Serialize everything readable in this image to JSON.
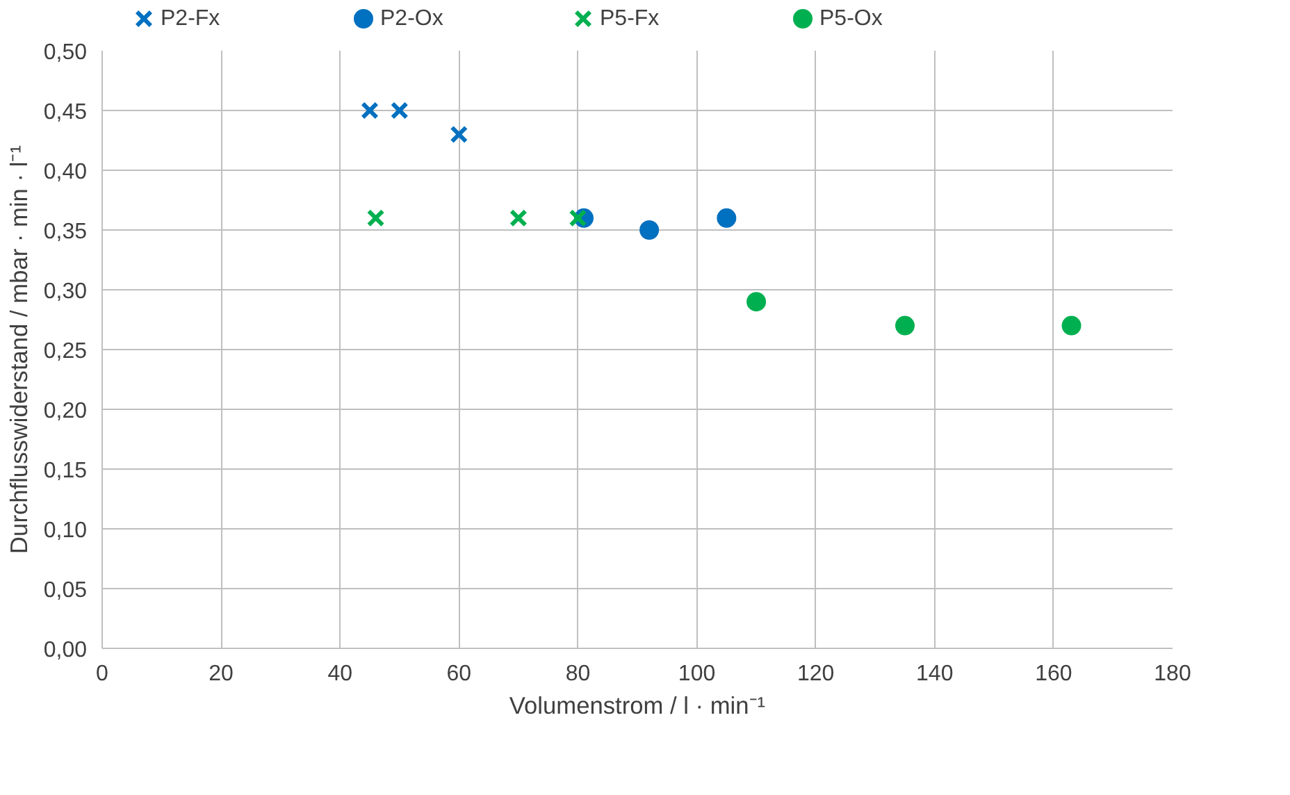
{
  "chart_data": {
    "type": "scatter",
    "xlabel": "Volumenstrom / l · min⁻¹",
    "ylabel": "Durchflusswiderstand / mbar · min · l⁻¹",
    "xlim": [
      0,
      180
    ],
    "xticks": [
      0,
      20,
      40,
      60,
      80,
      100,
      120,
      140,
      160,
      180
    ],
    "ylim": [
      0,
      0.5
    ],
    "yticks": [
      {
        "value": 0,
        "label": "0,00"
      },
      {
        "value": 0.05,
        "label": "0,05"
      },
      {
        "value": 0.1,
        "label": "0,10"
      },
      {
        "value": 0.15,
        "label": "0,15"
      },
      {
        "value": 0.2,
        "label": "0,20"
      },
      {
        "value": 0.25,
        "label": "0,25"
      },
      {
        "value": 0.3,
        "label": "0,30"
      },
      {
        "value": 0.35,
        "label": "0,35"
      },
      {
        "value": 0.4,
        "label": "0,40"
      },
      {
        "value": 0.45,
        "label": "0,45"
      },
      {
        "value": 0.5,
        "label": "0,50"
      }
    ],
    "grid": true,
    "legend": "top",
    "series": [
      {
        "name": "P2-Fx",
        "color": "#0070c0",
        "marker": "cross",
        "x": [
          45,
          50,
          60
        ],
        "values": [
          0.45,
          0.45,
          0.43
        ]
      },
      {
        "name": "P2-Ox",
        "color": "#0070c0",
        "marker": "circle",
        "x": [
          81,
          92,
          105
        ],
        "values": [
          0.36,
          0.35,
          0.36
        ]
      },
      {
        "name": "P5-Fx",
        "color": "#00b050",
        "marker": "cross",
        "x": [
          46,
          70,
          80
        ],
        "values": [
          0.36,
          0.36,
          0.36
        ]
      },
      {
        "name": "P5-Ox",
        "color": "#00b050",
        "marker": "circle",
        "x": [
          110,
          135,
          163
        ],
        "values": [
          0.29,
          0.27,
          0.27
        ]
      }
    ]
  }
}
